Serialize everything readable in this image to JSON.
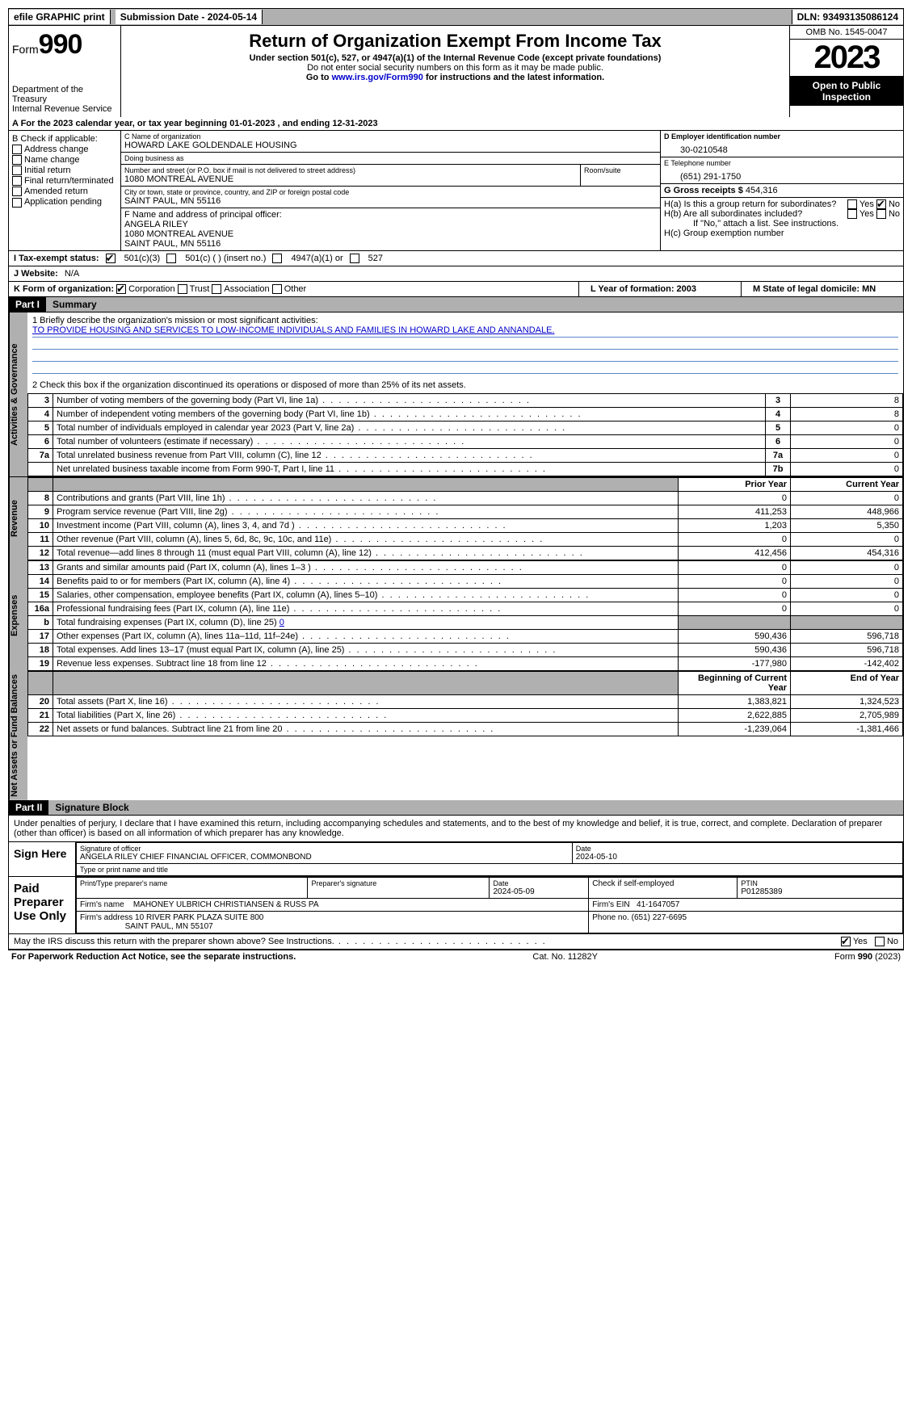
{
  "topbar": {
    "efile": "efile GRAPHIC print",
    "submission": "Submission Date - 2024-05-14",
    "dln": "DLN: 93493135086124"
  },
  "header": {
    "form": "Form",
    "num": "990",
    "dept": "Department of the Treasury\nInternal Revenue Service",
    "title": "Return of Organization Exempt From Income Tax",
    "sub": "Under section 501(c), 527, or 4947(a)(1) of the Internal Revenue Code (except private foundations)",
    "ssn": "Do not enter social security numbers on this form as it may be made public.",
    "goto_pre": "Go to ",
    "goto_link": "www.irs.gov/Form990",
    "goto_post": " for instructions and the latest information.",
    "omb": "OMB No. 1545-0047",
    "year": "2023",
    "inspect": "Open to Public Inspection"
  },
  "rowA": {
    "text": "A For the 2023 calendar year, or tax year beginning 01-01-2023   , and ending 12-31-2023"
  },
  "boxB": {
    "label": "B Check if applicable:",
    "items": [
      "Address change",
      "Name change",
      "Initial return",
      "Final return/terminated",
      "Amended return",
      "Application pending"
    ]
  },
  "boxC": {
    "name_lbl": "C Name of organization",
    "name": "HOWARD LAKE GOLDENDALE HOUSING",
    "dba_lbl": "Doing business as",
    "dba": "",
    "addr_lbl": "Number and street (or P.O. box if mail is not delivered to street address)",
    "room_lbl": "Room/suite",
    "addr": "1080 MONTREAL AVENUE",
    "city_lbl": "City or town, state or province, country, and ZIP or foreign postal code",
    "city": "SAINT PAUL, MN  55116"
  },
  "boxD": {
    "lbl": "D Employer identification number",
    "val": "30-0210548"
  },
  "boxE": {
    "lbl": "E Telephone number",
    "val": "(651) 291-1750"
  },
  "boxG": {
    "lbl": "G Gross receipts $",
    "val": "454,316"
  },
  "boxF": {
    "lbl": "F  Name and address of principal officer:",
    "name": "ANGELA RILEY",
    "addr1": "1080 MONTREAL AVENUE",
    "addr2": "SAINT PAUL, MN  55116"
  },
  "boxH": {
    "a": "H(a)  Is this a group return for subordinates?",
    "b": "H(b)  Are all subordinates included?",
    "note": "If \"No,\" attach a list. See instructions.",
    "c": "H(c)  Group exemption number",
    "yes": "Yes",
    "no": "No"
  },
  "rowI": {
    "lbl": "I   Tax-exempt status:",
    "opt1": "501(c)(3)",
    "opt2": "501(c) (  ) (insert no.)",
    "opt3": "4947(a)(1) or",
    "opt4": "527"
  },
  "rowJ": {
    "lbl": "J   Website:",
    "val": "N/A"
  },
  "rowK": {
    "lbl": "K Form of organization:",
    "opts": [
      "Corporation",
      "Trust",
      "Association",
      "Other"
    ],
    "L": "L Year of formation: 2003",
    "M": "M State of legal domicile: MN"
  },
  "part1": {
    "label": "Part I",
    "title": "Summary",
    "side_gov": "Activities & Governance",
    "side_rev": "Revenue",
    "side_exp": "Expenses",
    "side_net": "Net Assets or Fund Balances",
    "line1_lbl": "1   Briefly describe the organization's mission or most significant activities:",
    "line1_val": "TO PROVIDE HOUSING AND SERVICES TO LOW-INCOME INDIVIDUALS AND FAMILIES IN HOWARD LAKE AND ANNANDALE.",
    "line2": "2   Check this box         if the organization discontinued its operations or disposed of more than 25% of its net assets.",
    "rows_gov": [
      {
        "n": "3",
        "d": "Number of voting members of the governing body (Part VI, line 1a)",
        "b": "3",
        "v": "8"
      },
      {
        "n": "4",
        "d": "Number of independent voting members of the governing body (Part VI, line 1b)",
        "b": "4",
        "v": "8"
      },
      {
        "n": "5",
        "d": "Total number of individuals employed in calendar year 2023 (Part V, line 2a)",
        "b": "5",
        "v": "0"
      },
      {
        "n": "6",
        "d": "Total number of volunteers (estimate if necessary)",
        "b": "6",
        "v": "0"
      },
      {
        "n": "7a",
        "d": "Total unrelated business revenue from Part VIII, column (C), line 12",
        "b": "7a",
        "v": "0"
      },
      {
        "n": "",
        "d": "Net unrelated business taxable income from Form 990-T, Part I, line 11",
        "b": "7b",
        "v": "0"
      }
    ],
    "hdr_prior": "Prior Year",
    "hdr_curr": "Current Year",
    "rows_rev": [
      {
        "n": "8",
        "d": "Contributions and grants (Part VIII, line 1h)",
        "p": "0",
        "c": "0"
      },
      {
        "n": "9",
        "d": "Program service revenue (Part VIII, line 2g)",
        "p": "411,253",
        "c": "448,966"
      },
      {
        "n": "10",
        "d": "Investment income (Part VIII, column (A), lines 3, 4, and 7d )",
        "p": "1,203",
        "c": "5,350"
      },
      {
        "n": "11",
        "d": "Other revenue (Part VIII, column (A), lines 5, 6d, 8c, 9c, 10c, and 11e)",
        "p": "0",
        "c": "0"
      },
      {
        "n": "12",
        "d": "Total revenue—add lines 8 through 11 (must equal Part VIII, column (A), line 12)",
        "p": "412,456",
        "c": "454,316"
      }
    ],
    "rows_exp": [
      {
        "n": "13",
        "d": "Grants and similar amounts paid (Part IX, column (A), lines 1–3 )",
        "p": "0",
        "c": "0"
      },
      {
        "n": "14",
        "d": "Benefits paid to or for members (Part IX, column (A), line 4)",
        "p": "0",
        "c": "0"
      },
      {
        "n": "15",
        "d": "Salaries, other compensation, employee benefits (Part IX, column (A), lines 5–10)",
        "p": "0",
        "c": "0"
      },
      {
        "n": "16a",
        "d": "Professional fundraising fees (Part IX, column (A), line 11e)",
        "p": "0",
        "c": "0"
      }
    ],
    "row_b": {
      "n": "b",
      "d": "Total fundraising expenses (Part IX, column (D), line 25)",
      "v": "0"
    },
    "rows_exp2": [
      {
        "n": "17",
        "d": "Other expenses (Part IX, column (A), lines 11a–11d, 11f–24e)",
        "p": "590,436",
        "c": "596,718"
      },
      {
        "n": "18",
        "d": "Total expenses. Add lines 13–17 (must equal Part IX, column (A), line 25)",
        "p": "590,436",
        "c": "596,718"
      },
      {
        "n": "19",
        "d": "Revenue less expenses. Subtract line 18 from line 12",
        "p": "-177,980",
        "c": "-142,402"
      }
    ],
    "hdr_beg": "Beginning of Current Year",
    "hdr_end": "End of Year",
    "rows_net": [
      {
        "n": "20",
        "d": "Total assets (Part X, line 16)",
        "p": "1,383,821",
        "c": "1,324,523"
      },
      {
        "n": "21",
        "d": "Total liabilities (Part X, line 26)",
        "p": "2,622,885",
        "c": "2,705,989"
      },
      {
        "n": "22",
        "d": "Net assets or fund balances. Subtract line 21 from line 20",
        "p": "-1,239,064",
        "c": "-1,381,466"
      }
    ]
  },
  "part2": {
    "label": "Part II",
    "title": "Signature Block",
    "perjury": "Under penalties of perjury, I declare that I have examined this return, including accompanying schedules and statements, and to the best of my knowledge and belief, it is true, correct, and complete. Declaration of preparer (other than officer) is based on all information of which preparer has any knowledge.",
    "sign_here": "Sign Here",
    "sig_officer_lbl": "Signature of officer",
    "sig_officer": "ANGELA RILEY CHIEF FINANCIAL OFFICER, COMMONBOND",
    "sig_type_lbl": "Type or print name and title",
    "date_lbl": "Date",
    "date1": "2024-05-10",
    "paid": "Paid Preparer Use Only",
    "prep_name_lbl": "Print/Type preparer's name",
    "prep_sig_lbl": "Preparer's signature",
    "prep_date": "2024-05-09",
    "chk_lbl": "Check          if self-employed",
    "ptin_lbl": "PTIN",
    "ptin": "P01285389",
    "firm_name_lbl": "Firm's name",
    "firm_name": "MAHONEY ULBRICH CHRISTIANSEN & RUSS PA",
    "firm_ein_lbl": "Firm's EIN",
    "firm_ein": "41-1647057",
    "firm_addr_lbl": "Firm's address",
    "firm_addr1": "10 RIVER PARK PLAZA SUITE 800",
    "firm_addr2": "SAINT PAUL, MN  55107",
    "phone_lbl": "Phone no.",
    "phone": "(651) 227-6695",
    "discuss": "May the IRS discuss this return with the preparer shown above? See Instructions.",
    "yes": "Yes",
    "no": "No"
  },
  "footer": {
    "paperwork": "For Paperwork Reduction Act Notice, see the separate instructions.",
    "cat": "Cat. No. 11282Y",
    "form": "Form 990 (2023)"
  },
  "colors": {
    "bg": "#ffffff",
    "grey": "#b0b0b0",
    "black": "#000000",
    "link": "#0000cc",
    "ruleblue": "#5a89c7"
  }
}
